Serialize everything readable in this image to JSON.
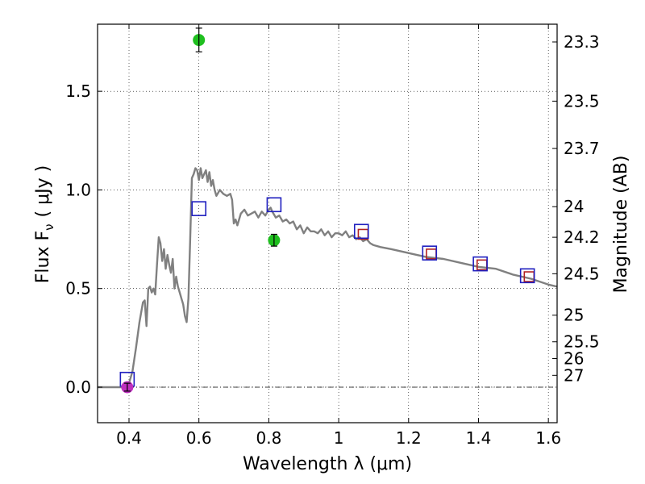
{
  "chart_data": {
    "type": "scatter",
    "title": "",
    "xlabel": "Wavelength  λ (μm)",
    "ylabel": "Flux  F",
    "ylabel_sub": "ν",
    "ylabel_unit": "( μJy )",
    "y2label": "Magnitude (AB)",
    "xlim": [
      0.31,
      1.625
    ],
    "ylim": [
      -0.18,
      1.84
    ],
    "xticks": [
      0.4,
      0.6,
      0.8,
      1.0,
      1.2,
      1.4,
      1.6
    ],
    "xtick_labels": [
      "0.4",
      "0.6",
      "0.8",
      "1",
      "1.2",
      "1.4",
      "1.6"
    ],
    "yticks": [
      0.0,
      0.5,
      1.0,
      1.5
    ],
    "ytick_labels": [
      "0.0",
      "0.5",
      "1.0",
      "1.5"
    ],
    "grid": true,
    "right_axis": {
      "label": "Magnitude (AB)",
      "ticks": [
        {
          "flux": 1.75,
          "label": "23.3"
        },
        {
          "flux": 1.45,
          "label": "23.5"
        },
        {
          "flux": 1.21,
          "label": "23.7"
        },
        {
          "flux": 0.915,
          "label": "24"
        },
        {
          "flux": 0.76,
          "label": "24.2"
        },
        {
          "flux": 0.575,
          "label": "24.5"
        },
        {
          "flux": 0.365,
          "label": "25"
        },
        {
          "flux": 0.23,
          "label": "25.5"
        },
        {
          "flux": 0.145,
          "label": "26"
        },
        {
          "flux": 0.06,
          "label": "27"
        }
      ]
    },
    "series": [
      {
        "name": "model SED",
        "kind": "line",
        "color": "#808080",
        "x": [
          0.31,
          0.39,
          0.4,
          0.41,
          0.42,
          0.43,
          0.44,
          0.445,
          0.45,
          0.455,
          0.46,
          0.465,
          0.47,
          0.475,
          0.48,
          0.485,
          0.49,
          0.495,
          0.5,
          0.505,
          0.51,
          0.515,
          0.52,
          0.525,
          0.53,
          0.535,
          0.54,
          0.545,
          0.55,
          0.555,
          0.56,
          0.565,
          0.57,
          0.575,
          0.58,
          0.585,
          0.59,
          0.595,
          0.6,
          0.605,
          0.61,
          0.615,
          0.62,
          0.625,
          0.63,
          0.635,
          0.64,
          0.645,
          0.65,
          0.66,
          0.67,
          0.68,
          0.69,
          0.695,
          0.7,
          0.705,
          0.71,
          0.72,
          0.73,
          0.74,
          0.75,
          0.76,
          0.77,
          0.78,
          0.79,
          0.8,
          0.805,
          0.81,
          0.82,
          0.83,
          0.84,
          0.85,
          0.86,
          0.87,
          0.88,
          0.89,
          0.9,
          0.91,
          0.92,
          0.93,
          0.94,
          0.95,
          0.96,
          0.97,
          0.98,
          0.99,
          1.0,
          1.01,
          1.02,
          1.03,
          1.04,
          1.05,
          1.06,
          1.07,
          1.08,
          1.09,
          1.1,
          1.12,
          1.15,
          1.2,
          1.25,
          1.3,
          1.35,
          1.4,
          1.45,
          1.5,
          1.55,
          1.6,
          1.625
        ],
        "y": [
          0.0,
          0.0,
          0.02,
          0.08,
          0.2,
          0.33,
          0.43,
          0.44,
          0.31,
          0.5,
          0.51,
          0.48,
          0.5,
          0.47,
          0.62,
          0.76,
          0.73,
          0.64,
          0.7,
          0.6,
          0.67,
          0.62,
          0.58,
          0.65,
          0.5,
          0.56,
          0.51,
          0.48,
          0.45,
          0.42,
          0.36,
          0.33,
          0.45,
          0.75,
          1.06,
          1.08,
          1.11,
          1.1,
          1.05,
          1.11,
          1.06,
          1.08,
          1.1,
          1.04,
          1.09,
          1.02,
          1.05,
          1.0,
          0.97,
          1.0,
          0.98,
          0.97,
          0.98,
          0.95,
          0.83,
          0.85,
          0.82,
          0.88,
          0.9,
          0.87,
          0.88,
          0.89,
          0.86,
          0.89,
          0.87,
          0.9,
          0.91,
          0.89,
          0.86,
          0.87,
          0.84,
          0.85,
          0.83,
          0.84,
          0.8,
          0.82,
          0.78,
          0.81,
          0.79,
          0.79,
          0.78,
          0.8,
          0.77,
          0.79,
          0.76,
          0.78,
          0.78,
          0.77,
          0.79,
          0.76,
          0.77,
          0.75,
          0.76,
          0.74,
          0.75,
          0.73,
          0.72,
          0.71,
          0.7,
          0.68,
          0.66,
          0.65,
          0.63,
          0.61,
          0.6,
          0.57,
          0.55,
          0.52,
          0.51
        ]
      },
      {
        "name": "model photometry (red squares)",
        "kind": "marker",
        "marker": "square",
        "color": "#b22222",
        "x": [
          1.07,
          1.265,
          1.41,
          1.545
        ],
        "y": [
          0.775,
          0.675,
          0.62,
          0.56
        ]
      },
      {
        "name": "model photometry (blue squares)",
        "kind": "marker",
        "marker": "square",
        "color": "#1f1fbf",
        "x": [
          0.395,
          0.6,
          0.815,
          1.065,
          1.26,
          1.405,
          1.54
        ],
        "y": [
          0.04,
          0.905,
          0.925,
          0.79,
          0.68,
          0.625,
          0.565
        ]
      },
      {
        "name": "observed (green)",
        "kind": "errorbar",
        "marker": "circle",
        "color": "#1fbf1f",
        "x": [
          0.6,
          0.815
        ],
        "y": [
          1.76,
          0.745
        ],
        "yerr": [
          0.06,
          0.03
        ]
      },
      {
        "name": "observed (magenta)",
        "kind": "errorbar",
        "marker": "circle",
        "color": "#bf2fbf",
        "x": [
          0.395
        ],
        "y": [
          0.0
        ],
        "yerr": [
          0.02
        ]
      }
    ]
  }
}
